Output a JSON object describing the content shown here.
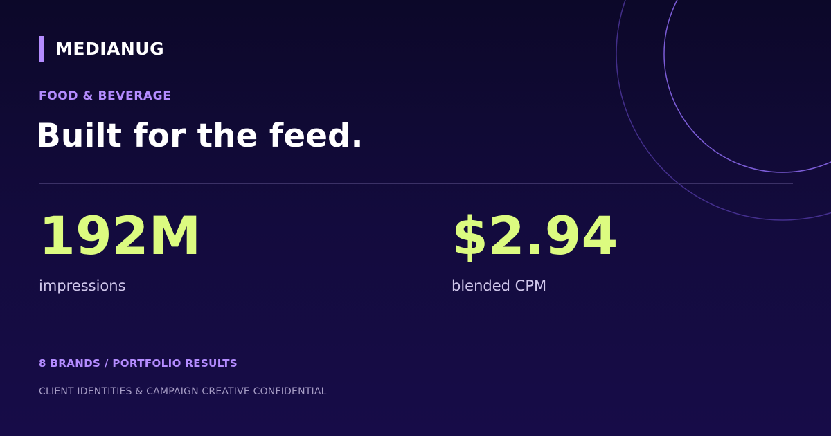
{
  "brand": {
    "name": "MEDIANUG"
  },
  "category": "FOOD & BEVERAGE",
  "headline": "Built for the feed.",
  "stats": [
    {
      "value": "192M",
      "label": "impressions"
    },
    {
      "value": "$2.94",
      "label": "blended CPM"
    }
  ],
  "footer": {
    "title": "8 BRANDS / PORTFOLIO RESULTS",
    "note": "CLIENT IDENTITIES & CAMPAIGN CREATIVE CONFIDENTIAL"
  },
  "colors": {
    "background_top": "#0c0829",
    "background_bottom": "#170c48",
    "accent": "#b48cff",
    "stat": "#dcfb80",
    "ring": "#7b5cd6"
  }
}
